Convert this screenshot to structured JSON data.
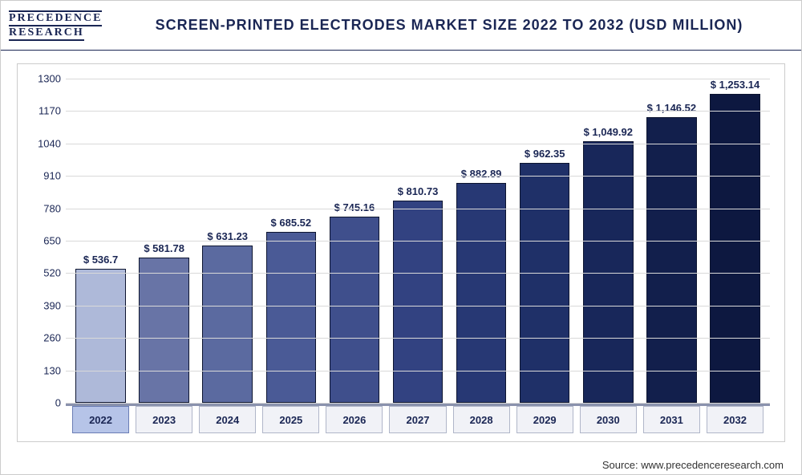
{
  "logo": {
    "line1": "PRECEDENCE",
    "line2": "RESEARCH"
  },
  "title": "Screen-Printed Electrodes Market Size 2022 to 2032 (USD Million)",
  "source": "Source: www.precedenceresearch.com",
  "chart": {
    "type": "bar",
    "ylim": [
      0,
      1300
    ],
    "ytick_step": 130,
    "yticks": [
      0,
      130,
      260,
      390,
      520,
      650,
      780,
      910,
      1040,
      1170,
      1300
    ],
    "grid_color": "#d9d9d9",
    "background_color": "#ffffff",
    "label_fontsize": 13,
    "title_fontsize": 18,
    "value_prefix": "$ ",
    "bar_width": 0.88,
    "bar_border_color": "#0d1530",
    "categories": [
      "2022",
      "2023",
      "2024",
      "2025",
      "2026",
      "2027",
      "2028",
      "2029",
      "2030",
      "2031",
      "2032"
    ],
    "values": [
      536.7,
      581.78,
      631.23,
      685.52,
      745.16,
      810.73,
      882.89,
      962.35,
      1049.92,
      1146.52,
      1253.14
    ],
    "value_labels": [
      "536.7",
      "581.78",
      "631.23",
      "685.52",
      "745.16",
      "810.73",
      "882.89",
      "962.35",
      "1,049.92",
      "1,146.52",
      "1,253.14"
    ],
    "bar_colors": [
      "#aeb9d9",
      "#6874a6",
      "#5b6aa0",
      "#4a5a96",
      "#3f4f8c",
      "#324281",
      "#273874",
      "#1f3068",
      "#18275a",
      "#121f4c",
      "#0d1840"
    ],
    "x_tick_background": "#f1f2f7",
    "x_tick_border": "#b0b6c9",
    "x_tick_active_background": "#b6c4e8",
    "text_color": "#1a2654",
    "active_index": 0
  }
}
